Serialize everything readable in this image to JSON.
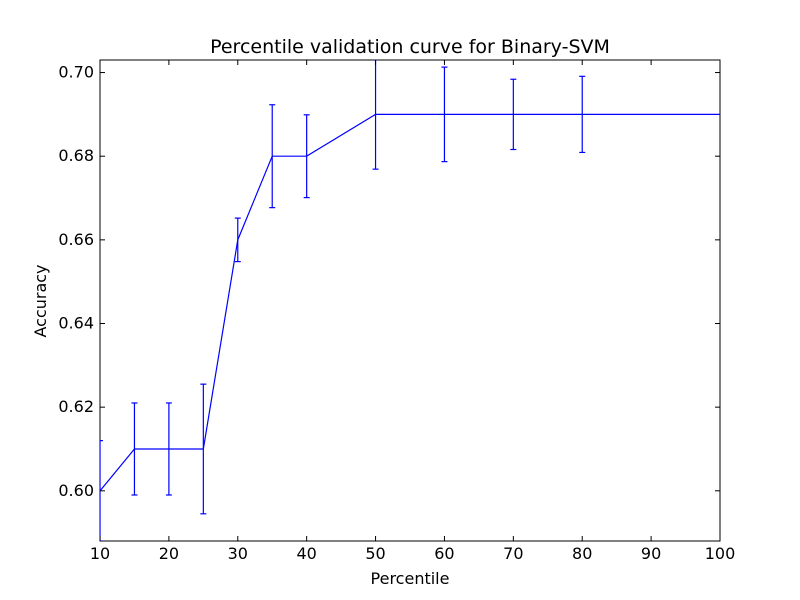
{
  "chart_data": {
    "type": "line",
    "title": "Percentile validation curve for Binary-SVM",
    "xlabel": "Percentile",
    "ylabel": "Accuracy",
    "xlim": [
      10,
      100
    ],
    "ylim": [
      0.588,
      0.703
    ],
    "xticks": [
      10,
      20,
      30,
      40,
      50,
      60,
      70,
      80,
      90,
      100
    ],
    "yticks": [
      0.6,
      0.62,
      0.64,
      0.66,
      0.68,
      0.7
    ],
    "grid": false,
    "legend": "none",
    "color": "#0000ff",
    "series": [
      {
        "x": [
          10,
          15,
          20,
          25,
          30,
          35,
          40,
          50,
          60,
          70,
          80,
          90,
          100
        ],
        "y": [
          0.6,
          0.61,
          0.61,
          0.61,
          0.66,
          0.68,
          0.68,
          0.69,
          0.69,
          0.69,
          0.69,
          0.69,
          0.69
        ],
        "err": [
          0.012,
          0.011,
          0.011,
          0.0155,
          0.0052,
          0.0123,
          0.0099,
          0.0131,
          0.0113,
          0.0084,
          0.0091,
          0,
          0
        ]
      }
    ]
  }
}
